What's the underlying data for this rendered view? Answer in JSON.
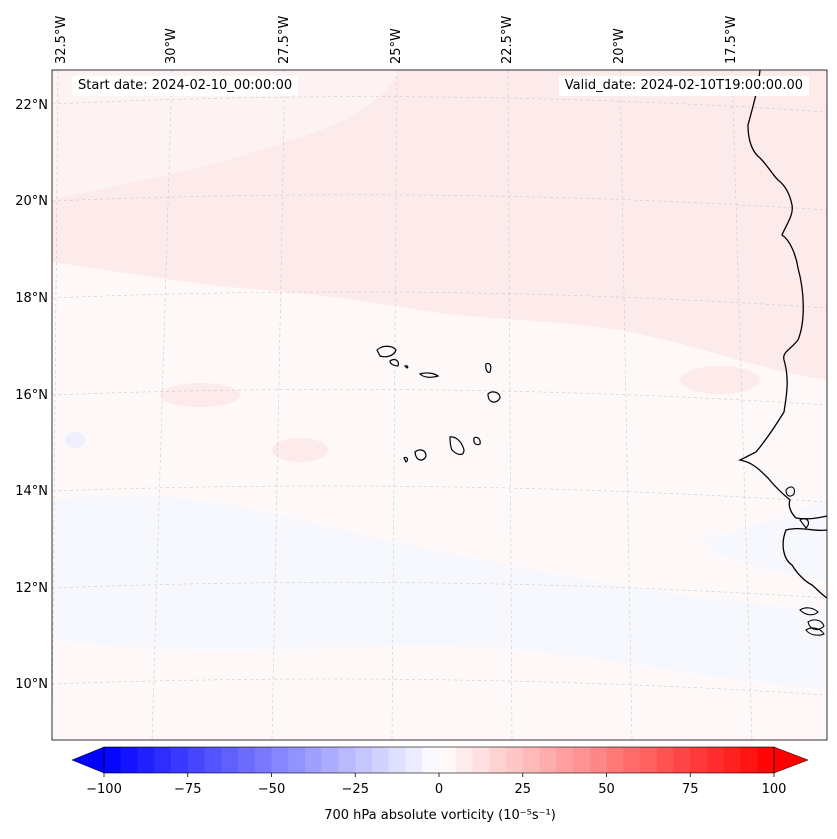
{
  "header": {
    "start_date": "Start date: 2024-02-10_00:00:00",
    "valid_date": "Valid_date: 2024-02-10T19:00:00.00"
  },
  "longitude_labels": [
    "32.5°W",
    "30°W",
    "27.5°W",
    "25°W",
    "22.5°W",
    "20°W",
    "17.5°W"
  ],
  "latitude_labels": [
    "22°N",
    "20°N",
    "18°N",
    "16°N",
    "14°N",
    "12°N",
    "10°N"
  ],
  "colorbar": {
    "title": "700 hPa absolute vorticity (10⁻⁵s⁻¹)",
    "min": -100,
    "max": 100,
    "ticks": [
      "−100",
      "−75",
      "−50",
      "−25",
      "0",
      "25",
      "50",
      "75",
      "100"
    ],
    "negative_color": "#0000ff",
    "positive_color": "#ff0000"
  },
  "map": {
    "ocean_color": "#fef8f8",
    "coastline_color": "#000000",
    "extent": {
      "lon_min": -32.5,
      "lon_max": -15.3,
      "lat_min": 8.9,
      "lat_max": 22.7
    }
  }
}
